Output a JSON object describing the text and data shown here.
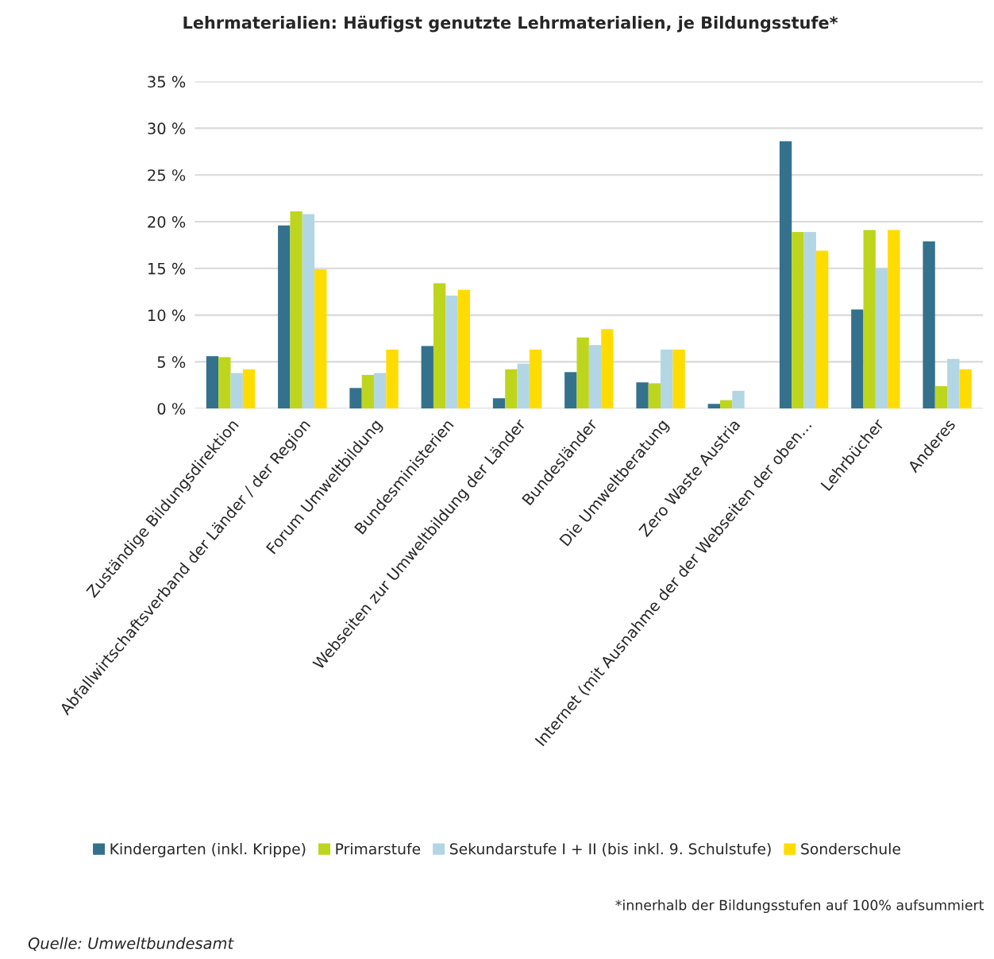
{
  "chart_data": {
    "type": "bar",
    "title": "Lehrmaterialien: Häufigst genutzte Lehrmaterialien, je Bildungsstufe*",
    "categories": [
      "Zuständige Bildungsdirektion",
      "Abfallwirtschaftsverband der Länder / der Region",
      "Forum Umweltbildung",
      "Bundesministerien",
      "Webseiten zur Umweltbildung der Länder",
      "Bundesländer",
      "Die Umweltberatung",
      "Zero Waste Austria",
      "Internet (mit Ausnahme der der Webseiten der oben…",
      "Lehrbücher",
      "Anderes"
    ],
    "series": [
      {
        "name": "Kindergarten (inkl. Krippe)",
        "color": "#34718c",
        "values": [
          5.6,
          19.6,
          2.2,
          6.7,
          1.1,
          3.9,
          2.8,
          0.5,
          28.6,
          10.6,
          17.9
        ]
      },
      {
        "name": "Primarstufe",
        "color": "#bed51e",
        "values": [
          5.5,
          21.1,
          3.6,
          13.4,
          4.2,
          7.6,
          2.7,
          0.9,
          18.9,
          19.1,
          2.4
        ]
      },
      {
        "name": "Sekundarstufe I + II (bis inkl. 9. Schulstufe)",
        "color": "#b3d6e5",
        "values": [
          3.8,
          20.8,
          3.8,
          12.1,
          4.8,
          6.8,
          6.3,
          1.9,
          18.9,
          15.0,
          5.3
        ]
      },
      {
        "name": "Sonderschule",
        "color": "#ffdc00",
        "values": [
          4.2,
          14.9,
          6.3,
          12.7,
          6.3,
          8.5,
          6.3,
          0,
          16.9,
          19.1,
          4.2
        ]
      }
    ],
    "ylim": [
      0,
      35
    ],
    "yticks": [
      {
        "value": 0,
        "label": "0 %"
      },
      {
        "value": 5,
        "label": "5 %"
      },
      {
        "value": 10,
        "label": "10 %"
      },
      {
        "value": 15,
        "label": "15 %"
      },
      {
        "value": 20,
        "label": "20 %"
      },
      {
        "value": 25,
        "label": "25 %"
      },
      {
        "value": 30,
        "label": "30 %"
      },
      {
        "value": 35,
        "label": "35 %"
      }
    ],
    "grid": "y",
    "legend": "bottom",
    "annotations": [
      "*innerhalb der Bildungsstufen auf 100% aufsummiert",
      "Quelle: Umweltbundesamt"
    ]
  }
}
